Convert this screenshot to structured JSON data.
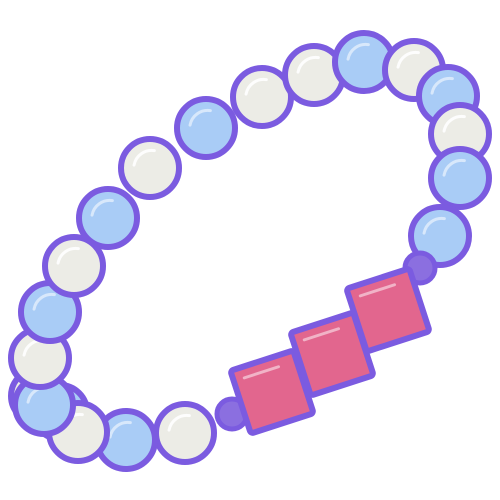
{
  "illustration": {
    "subject": "bead-bracelet-icon",
    "palette": {
      "outline": "#7B5BE0",
      "bead_blue": "#A9CCF6",
      "bead_white": "#ECECE6",
      "square_bead_pink": "#E2668E",
      "connector_bead": "#8B6FE0",
      "highlight": "#FFFFFF"
    },
    "bead_pattern": [
      "white",
      "blue",
      "white",
      "blue",
      "white",
      "blue",
      "white",
      "blue",
      "white",
      "blue",
      "white",
      "white",
      "blue",
      "white",
      "blue",
      "white",
      "blue",
      "blue",
      "white",
      "blue"
    ],
    "square_bead_count": 3,
    "connector_bead_count": 2
  }
}
